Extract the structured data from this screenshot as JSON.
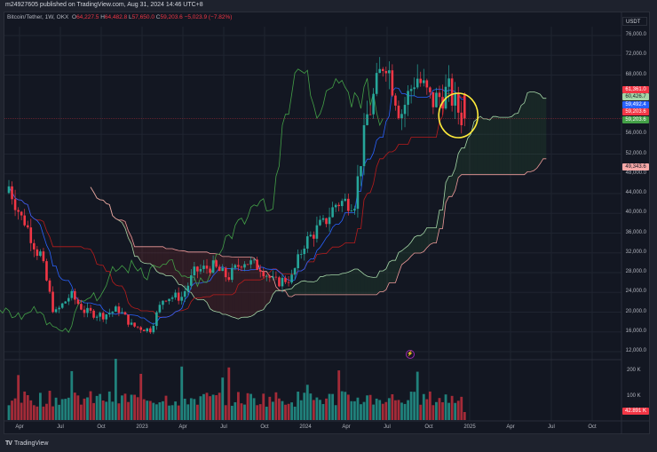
{
  "header": {
    "published_text": "m24927605 published on TradingView.com, Aug 31, 2024 14:46 UTC+8"
  },
  "legend": {
    "symbol": "Bitcoin/Tether, 1W, OKX",
    "open_label": "O",
    "open": "64,227.5",
    "high_label": "H",
    "high": "64,482.8",
    "low_label": "L",
    "low": "57,650.0",
    "close_label": "C",
    "close": "59,203.6",
    "change": "−5,023.9 (−7.82%)"
  },
  "price_axis": {
    "currency": "USDT",
    "ticks": [
      "76,000.0",
      "72,000.0",
      "68,000.0",
      "56,000.0",
      "52,000.0",
      "48,000.0",
      "44,000.0",
      "40,000.0",
      "36,000.0",
      "32,000.0",
      "28,000.0",
      "24,000.0",
      "20,000.0",
      "16,000.0",
      "12,000.0"
    ],
    "tags": [
      {
        "value": "61,361.0",
        "color": "#f23645",
        "text_color": "#ffffff"
      },
      {
        "value": "60,426.7",
        "color": "#a5d6a7",
        "text_color": "#131722"
      },
      {
        "value": "59,492.4",
        "color": "#2962ff",
        "text_color": "#ffffff"
      },
      {
        "value": "59,203.6",
        "color": "#f23645",
        "text_color": "#ffffff"
      },
      {
        "value": "59,203.6",
        "color": "#43a047",
        "text_color": "#ffffff"
      },
      {
        "value": "49,343.6",
        "color": "#f7a9a8",
        "text_color": "#131722"
      }
    ]
  },
  "volume_axis": {
    "ticks": [
      "200 K",
      "100 K"
    ],
    "current": "42.891 K"
  },
  "time_axis": {
    "labels": [
      "Apr",
      "Jul",
      "Oct",
      "2023",
      "Apr",
      "Jul",
      "Oct",
      "2024",
      "Apr",
      "Jul",
      "Oct",
      "2025",
      "Apr",
      "Jul",
      "Oct"
    ]
  },
  "footer": {
    "brand": "TradingView",
    "logo": "TV"
  },
  "annotation": {
    "shape": "ellipse",
    "color": "#ffeb3b",
    "note": "highlighted recent candles near 59k"
  },
  "colors": {
    "up": "#26a69a",
    "down": "#f23645",
    "tenkan": "#2962ff",
    "kijun": "#b71c1c",
    "chikou": "#43a047",
    "senkou_a": "#a5d6a7",
    "senkou_b": "#ef9a9a",
    "cloud_bull": "rgba(67,160,71,0.12)",
    "cloud_bear": "rgba(244,67,54,0.12)"
  },
  "chart_data": {
    "type": "candlestick",
    "title": "Bitcoin/Tether, 1W, OKX",
    "indicators": [
      "Ichimoku Cloud",
      "Volume"
    ],
    "xlabel": "",
    "ylabel": "USDT",
    "ylim": [
      12000,
      78000
    ],
    "time_ticks": [
      "Apr 2022",
      "Jul 2022",
      "Oct 2022",
      "2023",
      "Apr 2023",
      "Jul 2023",
      "Oct 2023",
      "2024",
      "Apr 2024",
      "Jul 2024",
      "Oct 2024",
      "2025",
      "Apr 2025",
      "Jul 2025",
      "Oct 2025"
    ],
    "last_bar": {
      "open": 64227.5,
      "high": 64482.8,
      "low": 57650.0,
      "close": 59203.6,
      "change": -5023.9,
      "change_pct": -7.82
    },
    "indicator_values": {
      "kijun_or_high_tag": 61361.0,
      "senkou_a": 60426.7,
      "tenkan": 59492.4,
      "close": 59203.6,
      "senkou_b": 49343.6
    },
    "volume_current": "42.891K",
    "closes_monthly_approx": [
      {
        "t": "2022-03",
        "close": 45500
      },
      {
        "t": "2022-04",
        "close": 38500
      },
      {
        "t": "2022-05",
        "close": 31800
      },
      {
        "t": "2022-06",
        "close": 19900
      },
      {
        "t": "2022-07",
        "close": 23300
      },
      {
        "t": "2022-08",
        "close": 20000
      },
      {
        "t": "2022-09",
        "close": 19400
      },
      {
        "t": "2022-10",
        "close": 20500
      },
      {
        "t": "2022-11",
        "close": 17100
      },
      {
        "t": "2022-12",
        "close": 16500
      },
      {
        "t": "2023-01",
        "close": 23100
      },
      {
        "t": "2023-02",
        "close": 23100
      },
      {
        "t": "2023-03",
        "close": 28400
      },
      {
        "t": "2023-04",
        "close": 29200
      },
      {
        "t": "2023-05",
        "close": 27200
      },
      {
        "t": "2023-06",
        "close": 30400
      },
      {
        "t": "2023-07",
        "close": 29200
      },
      {
        "t": "2023-08",
        "close": 26000
      },
      {
        "t": "2023-09",
        "close": 26900
      },
      {
        "t": "2023-10",
        "close": 34600
      },
      {
        "t": "2023-11",
        "close": 37700
      },
      {
        "t": "2023-12",
        "close": 42200
      },
      {
        "t": "2024-01",
        "close": 42500
      },
      {
        "t": "2024-02",
        "close": 61100
      },
      {
        "t": "2024-03",
        "close": 71200
      },
      {
        "t": "2024-04",
        "close": 60600
      },
      {
        "t": "2024-05",
        "close": 67500
      },
      {
        "t": "2024-06",
        "close": 62700
      },
      {
        "t": "2024-07",
        "close": 64600
      },
      {
        "t": "2024-08",
        "close": 59200
      }
    ]
  }
}
